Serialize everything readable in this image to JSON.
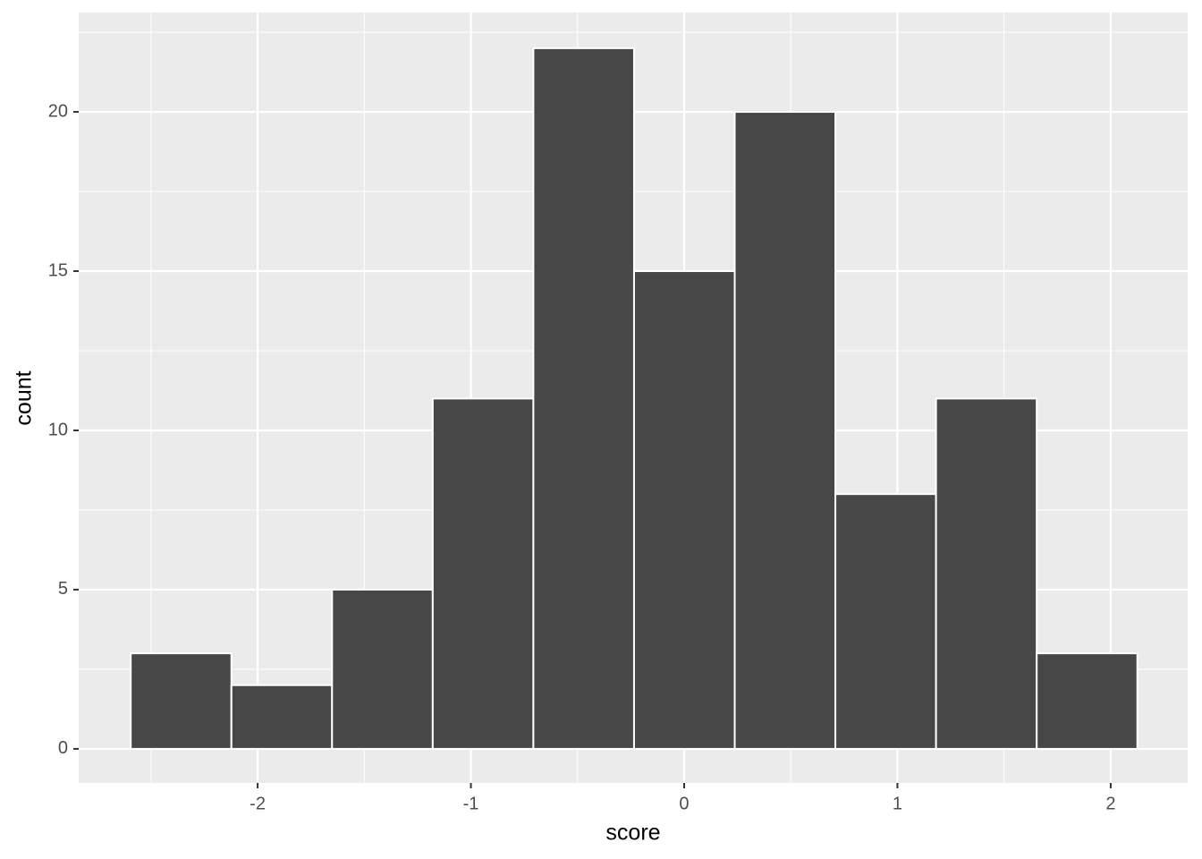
{
  "chart_data": {
    "type": "histogram",
    "x_label": "score",
    "y_label": "count",
    "bins": [
      -2.595,
      -2.123,
      -1.651,
      -1.179,
      -0.707,
      -0.235,
      0.237,
      0.709,
      1.181,
      1.653,
      2.125
    ],
    "values": [
      3,
      2,
      5,
      11,
      22,
      15,
      20,
      8,
      11,
      3
    ],
    "color": "#474747",
    "xlim": [
      -2.839,
      2.361
    ],
    "ylim": [
      -1.07,
      23.12
    ],
    "xticks": [
      -2,
      -1,
      0,
      1,
      2
    ],
    "yticks": [
      0,
      5,
      10,
      15,
      20
    ],
    "grid": true
  }
}
